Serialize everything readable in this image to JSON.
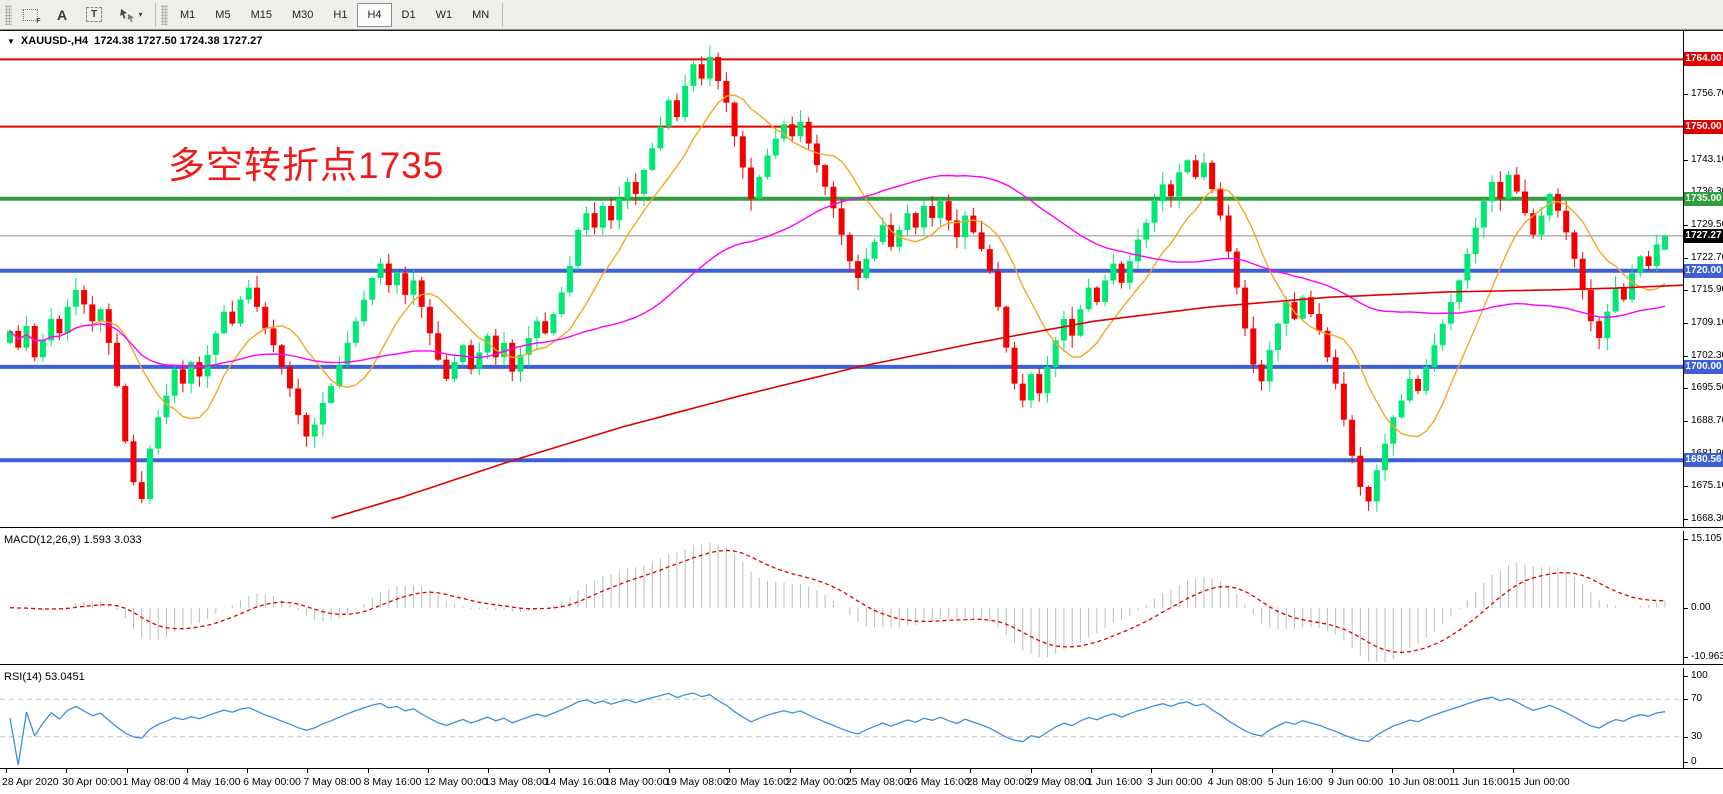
{
  "toolbar": {
    "tools": [
      {
        "name": "indicators-grid-icon",
        "glyph": "F"
      },
      {
        "name": "text-label-icon",
        "glyph": "A"
      },
      {
        "name": "text-box-icon",
        "glyph": "T"
      },
      {
        "name": "arrow-tools-icon",
        "glyph": "▾"
      }
    ],
    "timeframes": [
      "M1",
      "M5",
      "M15",
      "M30",
      "H1",
      "H4",
      "D1",
      "W1",
      "MN"
    ],
    "active_timeframe": "H4"
  },
  "chart": {
    "symbol_line": {
      "dropdown_glyph": "▼",
      "symbol": "XAUUSD-,H4",
      "ohlc_text": "1724.38 1727.50 1724.38 1727.27"
    },
    "annotation": {
      "text": "多空转折点1735",
      "color": "#f01a1a"
    }
  },
  "price_axis": {
    "range": {
      "top": 1769.5,
      "bottom": 1667.5
    },
    "ticks": [
      "1763.50",
      "1756.70",
      "1749.90",
      "1743.10",
      "1736.30",
      "1729.50",
      "1722.70",
      "1715.90",
      "1709.10",
      "1702.30",
      "1695.50",
      "1688.70",
      "1681.90",
      "1675.10",
      "1668.30"
    ],
    "tags": [
      {
        "label": "1764.00",
        "price": 1764.0,
        "bg": "#e00000"
      },
      {
        "label": "1750.00",
        "price": 1750.0,
        "bg": "#e00000"
      },
      {
        "label": "1735.00",
        "price": 1735.0,
        "bg": "#2f9e3f"
      },
      {
        "label": "1727.27",
        "price": 1727.27,
        "bg": "#000000"
      },
      {
        "label": "1720.00",
        "price": 1720.0,
        "bg": "#3d5fd8"
      },
      {
        "label": "1700.00",
        "price": 1700.0,
        "bg": "#3d5fd8"
      },
      {
        "label": "1680.56",
        "price": 1680.56,
        "bg": "#3d5fd8"
      }
    ]
  },
  "indicators": {
    "macd": {
      "label": "MACD(12,26,9) 1.593 3.033",
      "params": [
        12,
        26,
        9
      ],
      "value": 1.593,
      "signal_value": 3.033,
      "axis": [
        "15.105",
        "0.00",
        "-10.963"
      ],
      "range": {
        "max": 15.105,
        "min": -10.963
      }
    },
    "rsi": {
      "label": "RSI(14) 53.0451",
      "period": 14,
      "value": 53.0451,
      "axis": [
        "100",
        "70",
        "30",
        "0"
      ],
      "levels": [
        70,
        30
      ],
      "range": {
        "max": 100,
        "min": 0
      }
    }
  },
  "time_axis": {
    "labels": [
      "28 Apr 2020",
      "30 Apr 00:00",
      "1 May 08:00",
      "4 May 16:00",
      "6 May 00:00",
      "7 May 08:00",
      "8 May 16:00",
      "12 May 00:00",
      "13 May 08:00",
      "14 May 16:00",
      "18 May 00:00",
      "19 May 08:00",
      "20 May 16:00",
      "22 May 00:00",
      "25 May 08:00",
      "26 May 16:00",
      "28 May 00:00",
      "29 May 08:00",
      "1 Jun 16:00",
      "3 Jun 00:00",
      "4 Jun 08:00",
      "5 Jun 16:00",
      "9 Jun 00:00",
      "10 Jun 08:00",
      "11 Jun 16:00",
      "15 Jun 00:00"
    ]
  },
  "chart_data": {
    "type": "candlestick",
    "symbol": "XAUUSD-",
    "timeframe": "H4",
    "title": "XAUUSD-,H4 1724.38 1727.50 1724.38 1727.27",
    "ylim": [
      1667.5,
      1769.5
    ],
    "last_ohlc": [
      1724.38,
      1727.5,
      1724.38,
      1727.27
    ],
    "first_open": 1705.0,
    "closes": [
      1707.5,
      1704.0,
      1708.5,
      1702.0,
      1705.5,
      1710.0,
      1707.0,
      1712.5,
      1716.0,
      1713.0,
      1709.5,
      1712.0,
      1705.0,
      1696.0,
      1684.5,
      1676.0,
      1672.5,
      1683.0,
      1689.5,
      1694.0,
      1699.5,
      1696.5,
      1701.0,
      1698.0,
      1702.5,
      1707.0,
      1711.5,
      1709.0,
      1714.0,
      1716.5,
      1712.5,
      1708.0,
      1704.5,
      1700.0,
      1695.5,
      1690.0,
      1685.5,
      1688.0,
      1692.5,
      1696.0,
      1700.5,
      1705.0,
      1709.5,
      1714.0,
      1718.5,
      1721.5,
      1717.0,
      1719.5,
      1715.0,
      1718.0,
      1712.5,
      1707.0,
      1701.5,
      1697.5,
      1701.0,
      1704.5,
      1699.5,
      1703.0,
      1706.5,
      1702.0,
      1705.0,
      1699.0,
      1702.5,
      1706.0,
      1709.5,
      1707.0,
      1711.0,
      1715.5,
      1721.0,
      1728.5,
      1732.0,
      1729.0,
      1733.5,
      1730.5,
      1735.0,
      1738.5,
      1736.0,
      1741.0,
      1745.5,
      1750.0,
      1755.5,
      1752.0,
      1758.5,
      1763.0,
      1760.0,
      1764.5,
      1759.5,
      1755.0,
      1748.0,
      1741.5,
      1735.0,
      1739.5,
      1744.0,
      1747.5,
      1750.5,
      1748.0,
      1751.0,
      1746.5,
      1742.0,
      1737.5,
      1733.0,
      1727.5,
      1722.0,
      1718.5,
      1722.5,
      1726.0,
      1729.5,
      1725.0,
      1728.5,
      1732.0,
      1729.0,
      1733.5,
      1731.0,
      1734.5,
      1730.5,
      1727.0,
      1731.5,
      1728.0,
      1724.5,
      1720.0,
      1712.5,
      1704.0,
      1696.5,
      1693.0,
      1698.5,
      1694.5,
      1700.0,
      1705.5,
      1710.0,
      1706.5,
      1712.0,
      1716.5,
      1713.5,
      1718.0,
      1721.5,
      1717.5,
      1722.0,
      1726.5,
      1730.0,
      1734.5,
      1738.0,
      1735.5,
      1740.5,
      1743.0,
      1739.5,
      1742.5,
      1737.0,
      1731.5,
      1724.0,
      1716.5,
      1708.0,
      1700.5,
      1697.0,
      1703.5,
      1709.0,
      1713.5,
      1710.0,
      1714.5,
      1711.0,
      1707.5,
      1702.0,
      1696.5,
      1689.0,
      1681.5,
      1675.0,
      1672.0,
      1678.5,
      1684.0,
      1689.5,
      1693.0,
      1697.5,
      1695.0,
      1700.0,
      1704.5,
      1709.0,
      1713.5,
      1718.0,
      1723.5,
      1729.0,
      1734.5,
      1738.5,
      1735.0,
      1740.0,
      1736.5,
      1732.0,
      1727.5,
      1731.5,
      1736.0,
      1732.5,
      1728.0,
      1722.5,
      1716.0,
      1709.5,
      1706.0,
      1711.5,
      1716.5,
      1714.0,
      1719.5,
      1723.0,
      1721.0,
      1725.5,
      1727.27
    ],
    "horizontal_lines": [
      {
        "price": 1764.0,
        "color": "#e00000",
        "width": 2
      },
      {
        "price": 1750.0,
        "color": "#e00000",
        "width": 2
      },
      {
        "price": 1735.0,
        "color": "#2f9e3f",
        "width": 4
      },
      {
        "price": 1727.27,
        "color": "#8c8c8c",
        "width": 1
      },
      {
        "price": 1720.0,
        "color": "#3d5fd8",
        "width": 4
      },
      {
        "price": 1700.0,
        "color": "#3d5fd8",
        "width": 4
      },
      {
        "price": 1680.56,
        "color": "#3d5fd8",
        "width": 4
      }
    ],
    "moving_averages": [
      {
        "name": "fast-ma",
        "color": "#f5a623",
        "period": 10
      },
      {
        "name": "mid-ma",
        "color": "#ff00ff",
        "period": 45
      },
      {
        "name": "slow-ma",
        "color": "#e00000",
        "path": [
          [
            0.197,
            1668.5
          ],
          [
            0.24,
            1673.0
          ],
          [
            0.3,
            1680.0
          ],
          [
            0.37,
            1687.5
          ],
          [
            0.44,
            1694.0
          ],
          [
            0.51,
            1700.0
          ],
          [
            0.58,
            1705.0
          ],
          [
            0.65,
            1709.5
          ],
          [
            0.72,
            1712.5
          ],
          [
            0.79,
            1714.5
          ],
          [
            0.86,
            1715.6
          ],
          [
            0.92,
            1716.0
          ],
          [
            0.96,
            1716.4
          ],
          [
            1.0,
            1717.0
          ]
        ]
      }
    ],
    "colors": {
      "up": "#00e874",
      "down": "#f40000",
      "macd_hist": "#bcbcbc",
      "macd_signal": "#e00000",
      "rsi_line": "#3e8ede"
    },
    "subpanels": [
      {
        "type": "macd",
        "params": [
          12,
          26,
          9
        ],
        "last_main": 1.593,
        "last_signal": 3.033,
        "yrange": [
          -10.963,
          15.105
        ]
      },
      {
        "type": "rsi",
        "period": 14,
        "last": 53.0451,
        "levels": [
          30,
          70
        ],
        "yrange": [
          0,
          100
        ]
      }
    ]
  }
}
